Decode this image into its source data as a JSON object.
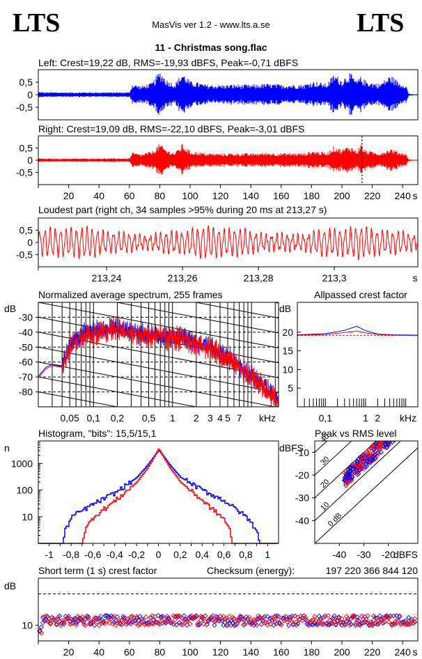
{
  "header": {
    "logo_left": "LTS",
    "logo_right": "LTS",
    "app_title": "MasVis ver 1.2 - www.lts.a.se",
    "track_title": "11 - Christmas song.flac"
  },
  "colors": {
    "left": "#0000ff",
    "right": "#ff0000",
    "black": "#000000"
  },
  "chart_data": [
    {
      "id": "left-waveform",
      "type": "area",
      "title": "Left: Crest=19,22 dB, RMS=-19,93 dBFS, Peak=-0,71 dBFS",
      "ylim": [
        -1,
        1
      ],
      "xlim": [
        0,
        250
      ],
      "y_ticks": [
        "0,5",
        "0",
        "-0,5"
      ],
      "y_tick_values": [
        0.5,
        0,
        -0.5
      ],
      "envelope": {
        "t": [
          0,
          5,
          60,
          62,
          68,
          75,
          80,
          85,
          90,
          95,
          100,
          105,
          110,
          120,
          130,
          140,
          150,
          160,
          175,
          178,
          181,
          185,
          190,
          195,
          200,
          205,
          210,
          212,
          215,
          220,
          225,
          232,
          238,
          242,
          244,
          247,
          250
        ],
        "amp": [
          0.12,
          0.1,
          0.1,
          0.45,
          0.35,
          0.5,
          0.98,
          0.6,
          0.45,
          0.92,
          0.55,
          0.5,
          0.42,
          0.4,
          0.42,
          0.4,
          0.45,
          0.42,
          0.42,
          0.5,
          0.55,
          0.5,
          0.45,
          0.85,
          0.6,
          0.9,
          0.55,
          0.75,
          0.6,
          0.5,
          0.45,
          0.8,
          0.5,
          0.45,
          0.05,
          0.02,
          0.02
        ]
      }
    },
    {
      "id": "right-waveform",
      "type": "area",
      "title": "Right: Crest=19,09 dB, RMS=-22,10 dBFS, Peak=-3,01 dBFS",
      "ylim": [
        -1,
        1
      ],
      "xlim": [
        0,
        250
      ],
      "y_ticks": [
        "0,5",
        "0",
        "-0,5"
      ],
      "y_tick_values": [
        0.5,
        0,
        -0.5
      ],
      "x_ticks": [
        "20",
        "40",
        "60",
        "80",
        "100",
        "120",
        "140",
        "160",
        "180",
        "200",
        "220",
        "240",
        "s"
      ],
      "x_tick_values": [
        20,
        40,
        60,
        80,
        100,
        120,
        140,
        160,
        180,
        200,
        220,
        240
      ],
      "marker_time": 213.27,
      "envelope": {
        "t": [
          0,
          5,
          60,
          62,
          68,
          75,
          80,
          85,
          90,
          95,
          100,
          105,
          110,
          120,
          130,
          140,
          150,
          160,
          175,
          178,
          181,
          185,
          190,
          195,
          200,
          205,
          210,
          212,
          215,
          220,
          225,
          232,
          238,
          242,
          244,
          247,
          250
        ],
        "amp": [
          0.08,
          0.07,
          0.08,
          0.32,
          0.25,
          0.38,
          0.7,
          0.42,
          0.32,
          0.68,
          0.38,
          0.35,
          0.3,
          0.28,
          0.3,
          0.28,
          0.32,
          0.3,
          0.3,
          0.35,
          0.4,
          0.36,
          0.32,
          0.6,
          0.45,
          0.62,
          0.4,
          0.7,
          0.45,
          0.35,
          0.32,
          0.5,
          0.35,
          0.3,
          0.04,
          0.02,
          0.02
        ]
      }
    },
    {
      "id": "loudest-part",
      "type": "line",
      "title": "Loudest part (right ch, 34 samples >95% during 20 ms at 213,27 s)",
      "ylim": [
        -1,
        1
      ],
      "xlim": [
        213.222,
        213.322
      ],
      "y_ticks": [
        "0,5",
        "0",
        "-0,5"
      ],
      "y_tick_values": [
        0.5,
        0,
        -0.5
      ],
      "x_ticks": [
        "213,24",
        "213,26",
        "213,28",
        "213,3",
        "s"
      ],
      "x_tick_values": [
        213.24,
        213.26,
        213.28,
        213.3
      ],
      "approx_cycles": 72,
      "approx_amplitude": 0.55
    },
    {
      "id": "average-spectrum",
      "type": "line",
      "title": "Normalized average spectrum, 255 frames",
      "ylabel": "dB",
      "xlabel": "kHz",
      "x_scale": "log",
      "xlim_khz": [
        0.02,
        22
      ],
      "ylim": [
        -90,
        -20
      ],
      "y_ticks": [
        "-30",
        "-40",
        "-50",
        "-60",
        "-70",
        "-80"
      ],
      "y_tick_values": [
        -30,
        -40,
        -50,
        -60,
        -70,
        -80
      ],
      "x_ticks": [
        "0,05",
        "0,1",
        "0,2",
        "0,5",
        "1",
        "2",
        "3",
        "4",
        "5",
        "7",
        "kHz"
      ],
      "x_tick_values": [
        0.05,
        0.1,
        0.2,
        0.5,
        1,
        2,
        3,
        4,
        5,
        7
      ],
      "spectrum_points": {
        "f": [
          0.02,
          0.025,
          0.03,
          0.04,
          0.05,
          0.07,
          0.1,
          0.15,
          0.2,
          0.3,
          0.5,
          0.7,
          1,
          1.5,
          2,
          3,
          4,
          5,
          6,
          7,
          8,
          10,
          14,
          18,
          22
        ],
        "db": [
          -70,
          -64,
          -62,
          -63,
          -50,
          -42,
          -40,
          -38,
          -37,
          -40,
          -42,
          -42,
          -44,
          -44,
          -48,
          -50,
          -54,
          -58,
          -60,
          -62,
          -66,
          -70,
          -76,
          -82,
          -86
        ]
      }
    },
    {
      "id": "allpassed-crest",
      "type": "line",
      "title": "Allpassed crest factor",
      "ylabel": "dB",
      "xlabel": "kHz",
      "x_scale": "log",
      "xlim_khz": [
        0.02,
        20
      ],
      "ylim": [
        0,
        28
      ],
      "y_ticks": [
        "20",
        "15",
        "10",
        "5"
      ],
      "y_tick_values": [
        20,
        15,
        10,
        5
      ],
      "x_ticks": [
        "0,1",
        "1",
        "2",
        "kHz"
      ],
      "x_tick_values": [
        0.1,
        1,
        2
      ],
      "series": [
        {
          "color": "#0000ff",
          "f": [
            0.02,
            0.1,
            0.3,
            0.6,
            1,
            2,
            5,
            20
          ],
          "db": [
            19.3,
            19.6,
            20.5,
            21.6,
            20.4,
            19.5,
            19.3,
            19.2
          ]
        },
        {
          "color": "#ff0000",
          "f": [
            0.02,
            0.1,
            0.3,
            0.6,
            1,
            2,
            5,
            20
          ],
          "db": [
            19.2,
            19.4,
            19.9,
            20.3,
            19.8,
            19.4,
            19.2,
            19.1
          ]
        }
      ],
      "reference_db": 19.1
    },
    {
      "id": "histogram",
      "type": "line",
      "title": "Histogram, \"bits\": 15,5/15,1",
      "ylabel": "n",
      "y_scale": "log",
      "xlim": [
        -1.1,
        1.1
      ],
      "y_ticks": [
        "1000",
        "100",
        "10"
      ],
      "y_tick_values": [
        1000,
        100,
        10
      ],
      "x_ticks": [
        "-1",
        "-0,8",
        "-0,6",
        "-0,4",
        "-0,2",
        "0",
        "0,2",
        "0,4",
        "0,6",
        "0,8",
        "1"
      ],
      "x_tick_values": [
        -1,
        -0.8,
        -0.6,
        -0.4,
        -0.2,
        0,
        0.2,
        0.4,
        0.6,
        0.8,
        1
      ],
      "series": [
        {
          "color": "#0000ff",
          "x": [
            -1.1,
            -0.88,
            -0.86,
            -0.8,
            -0.6,
            -0.4,
            -0.2,
            -0.1,
            0,
            0.1,
            0.2,
            0.4,
            0.6,
            0.8,
            0.9,
            0.92,
            1.1
          ],
          "n": [
            1,
            1,
            3,
            10,
            30,
            80,
            300,
            900,
            3200,
            900,
            300,
            100,
            40,
            10,
            3,
            1,
            1
          ]
        },
        {
          "color": "#ff0000",
          "x": [
            -1.1,
            -0.7,
            -0.68,
            -0.6,
            -0.4,
            -0.2,
            -0.1,
            0,
            0.1,
            0.2,
            0.4,
            0.6,
            0.65,
            0.67,
            1.1
          ],
          "n": [
            1,
            1,
            3,
            10,
            40,
            200,
            700,
            3600,
            700,
            200,
            40,
            8,
            3,
            1,
            1
          ]
        }
      ]
    },
    {
      "id": "peak-vs-rms",
      "type": "scatter",
      "title": "Peak vs RMS level",
      "ylabel": "dBFS",
      "xlabel": "dBFS",
      "xlim": [
        -50,
        -8
      ],
      "ylim": [
        -50,
        -5
      ],
      "x_ticks": [
        "-40",
        "-30",
        "-20",
        "dBFS"
      ],
      "x_tick_values": [
        -40,
        -30,
        -20
      ],
      "y_ticks": [
        "-10",
        "-20",
        "-30",
        "-40"
      ],
      "y_tick_values": [
        -10,
        -20,
        -30,
        -40
      ],
      "crest_lines": [
        "40",
        "30",
        "20",
        "10",
        "0 dB"
      ],
      "crest_line_values": [
        40,
        30,
        20,
        10,
        0
      ],
      "cluster": {
        "rms_range": [
          -38,
          -17
        ],
        "slope": 1,
        "offset_db": 16
      }
    },
    {
      "id": "short-term-crest",
      "type": "scatter",
      "title": "Short term (1 s) crest factor",
      "checksum_label": "Checksum (energy):",
      "checksum_value": "197 220 366 844 120",
      "ylabel": "dB",
      "ylim": [
        5,
        25
      ],
      "xlim": [
        0,
        250
      ],
      "y_ticks": [
        "10"
      ],
      "y_tick_values": [
        10
      ],
      "reference_db": 20,
      "x_ticks": [
        "20",
        "40",
        "60",
        "80",
        "100",
        "120",
        "140",
        "160",
        "180",
        "200",
        "220",
        "240",
        "s"
      ],
      "x_tick_values": [
        20,
        40,
        60,
        80,
        100,
        120,
        140,
        160,
        180,
        200,
        220,
        240
      ],
      "typical_db": 11.5
    }
  ]
}
